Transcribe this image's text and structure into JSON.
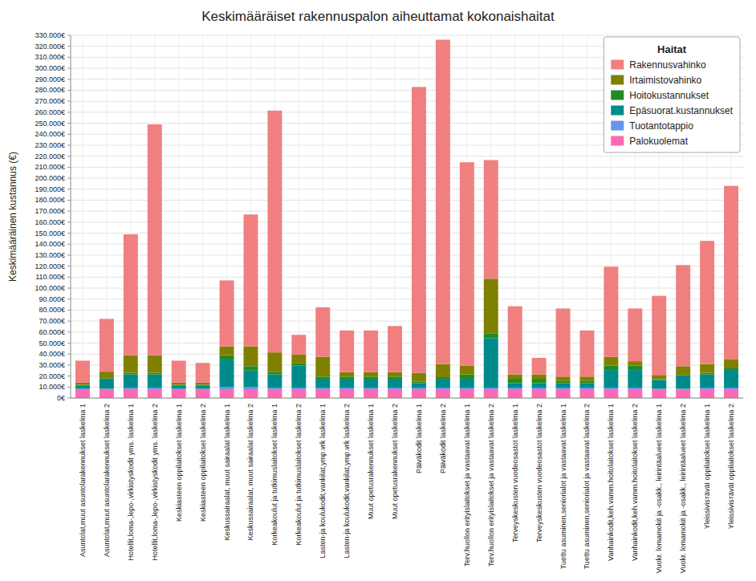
{
  "chart_data": {
    "type": "bar",
    "stacked": true,
    "title": "Keskimääräiset rakennuspalon aiheuttamat kokonaishaitat",
    "ylabel": "Keskimääräinen kustannus (€)",
    "legend_title": "Haitat",
    "legend": "upper right",
    "grid": true,
    "categories": [
      "Asuntolat,muut asuntolarakennukset laskelma 1",
      "Asuntolat,muut asuntolarakennukset laskelma 2",
      "Hotellit,loma-,lepo-,virkistyskodit yms. laskelma 1",
      "Hotellit,loma-,lepo-,virkistyskodit yms. laskelma 2",
      "Keskiasteen oppilaitokset laskelma 1",
      "Keskiasteen oppilaitokset laskelma 2",
      "Keskussairaalat, muut sairaalat laskelma 1",
      "Keskussairaalat, muut sairaalat laskelma 2",
      "Korkeakoulut ja tutkimuslaitokset laskelma 1",
      "Korkeakoulut ja tutkimuslaitokset laskelma 2",
      "Lasten-ja koulukodit,vankilat,ymp.vrk laskelma 1",
      "Lasten-ja koulukodit,vankilat,ymp.vrk laskelma 2",
      "Muut opetusrakennukset laskelma 1",
      "Muut opetusrakennukset laskelma 2",
      "Päiväkodit laskelma 1",
      "Päiväkodit laskelma 2",
      "Terv.huollon erityislaitokset ja vastaavat  laskelma 1",
      "Terv.huollon erityislaitokset ja vastaavat  laskelma 2",
      "Terveyskeskusten vuodeosastot  laskelma 1",
      "Terveyskeskusten vuodeosastot  laskelma 2",
      "Tuettu asuminen,seniorialot ja vastaavat laskelma 1",
      "Tuettu asuminen,seniorialot ja vastaavat laskelma 2",
      "Vanhainkodit,keh.vamm.hoitolaitokset laskelma 1",
      "Vanhainkodit,keh.vamm.hoitolaitokset laskelma 2",
      "Vuokr. lomamokit ja -osakk., leirintäalueet  laskelma 1",
      "Vuokr. lomamokit ja -osakk., leirintäalueet  laskelma 2",
      "Yleissivisтävät oppilaitokset laskelma 1",
      "Yleissivisтävät oppilaitokset laskelma 2"
    ],
    "series": [
      {
        "name": "Palokuolemat",
        "color": "#FF69B4",
        "values": [
          8000,
          8000,
          8000,
          8000,
          8000,
          8000,
          8000,
          8000,
          8000,
          8000,
          8000,
          8000,
          8000,
          8000,
          8000,
          8000,
          8000,
          8000,
          8000,
          8000,
          8000,
          8000,
          8000,
          8000,
          8000,
          8000,
          8000,
          8000
        ]
      },
      {
        "name": "Tuotantotappio",
        "color": "#6495ED",
        "values": [
          500,
          500,
          1500,
          1500,
          500,
          500,
          2000,
          2000,
          1500,
          1500,
          1500,
          1500,
          1500,
          1500,
          1500,
          1500,
          1500,
          1500,
          1500,
          1500,
          1500,
          1500,
          1500,
          1500,
          500,
          500,
          1500,
          1500
        ]
      },
      {
        "name": "Epäsuorat.kustannukset",
        "color": "#008B8B",
        "values": [
          3000,
          9000,
          12000,
          12000,
          3000,
          3000,
          25000,
          15000,
          12000,
          20000,
          8000,
          8000,
          8000,
          8000,
          4000,
          8000,
          8000,
          45000,
          4000,
          4000,
          4000,
          4000,
          16000,
          16000,
          8000,
          12000,
          12000,
          16000
        ]
      },
      {
        "name": "Hoitokustannukset",
        "color": "#228B22",
        "values": [
          500,
          500,
          1500,
          1500,
          500,
          500,
          4000,
          4000,
          2000,
          2000,
          2000,
          2000,
          2000,
          2000,
          1500,
          1500,
          4000,
          4000,
          4000,
          4000,
          2000,
          2000,
          4000,
          4000,
          500,
          500,
          1500,
          1500
        ]
      },
      {
        "name": "Irtaimistovahinko",
        "color": "#808000",
        "values": [
          2000,
          6000,
          16000,
          16000,
          2000,
          2000,
          8000,
          18000,
          18000,
          8000,
          18000,
          4000,
          4000,
          4000,
          8000,
          12000,
          8000,
          50000,
          4000,
          4000,
          4000,
          4000,
          8000,
          4000,
          4000,
          8000,
          8000,
          8000
        ]
      },
      {
        "name": "Rakennusvahinko",
        "color": "#F08080",
        "values": [
          20000,
          48000,
          110000,
          210000,
          20000,
          18000,
          60000,
          120000,
          220000,
          18000,
          45000,
          38000,
          38000,
          42000,
          260000,
          295000,
          185000,
          108000,
          62000,
          15000,
          62000,
          42000,
          82000,
          48000,
          72000,
          92000,
          112000,
          158000
        ]
      }
    ],
    "ylim": [
      0,
      330000
    ],
    "yticks": [
      {
        "value": 0,
        "label": "0€"
      },
      {
        "value": 10000,
        "label": "10.000€"
      },
      {
        "value": 20000,
        "label": "20.000€"
      },
      {
        "value": 30000,
        "label": "30.000€"
      },
      {
        "value": 40000,
        "label": "40.000€"
      },
      {
        "value": 50000,
        "label": "50.000€"
      },
      {
        "value": 60000,
        "label": "60.000€"
      },
      {
        "value": 70000,
        "label": "70.000€"
      },
      {
        "value": 80000,
        "label": "80.000€"
      },
      {
        "value": 90000,
        "label": "90.000€"
      },
      {
        "value": 100000,
        "label": "100.000€"
      },
      {
        "value": 110000,
        "label": "110.000€"
      },
      {
        "value": 120000,
        "label": "120.000€"
      },
      {
        "value": 130000,
        "label": "130.000€"
      },
      {
        "value": 140000,
        "label": "140.000€"
      },
      {
        "value": 150000,
        "label": "150.000€"
      },
      {
        "value": 160000,
        "label": "160.000€"
      },
      {
        "value": 170000,
        "label": "170.000€"
      },
      {
        "value": 180000,
        "label": "180.000€"
      },
      {
        "value": 190000,
        "label": "190.000€"
      },
      {
        "value": 200000,
        "label": "200.000€"
      },
      {
        "value": 210000,
        "label": "210.000€"
      },
      {
        "value": 220000,
        "label": "220.000€"
      },
      {
        "value": 230000,
        "label": "230.000€"
      },
      {
        "value": 240000,
        "label": "240.000€"
      },
      {
        "value": 250000,
        "label": "250.000€"
      },
      {
        "value": 260000,
        "label": "260.000€"
      },
      {
        "value": 270000,
        "label": "270.000€"
      },
      {
        "value": 280000,
        "label": "280.000€"
      },
      {
        "value": 290000,
        "label": "290.000€"
      },
      {
        "value": 300000,
        "label": "300.000€"
      },
      {
        "value": 310000,
        "label": "310.000€"
      },
      {
        "value": 320000,
        "label": "320.000€"
      },
      {
        "value": 330000,
        "label": "330.000€"
      }
    ]
  }
}
